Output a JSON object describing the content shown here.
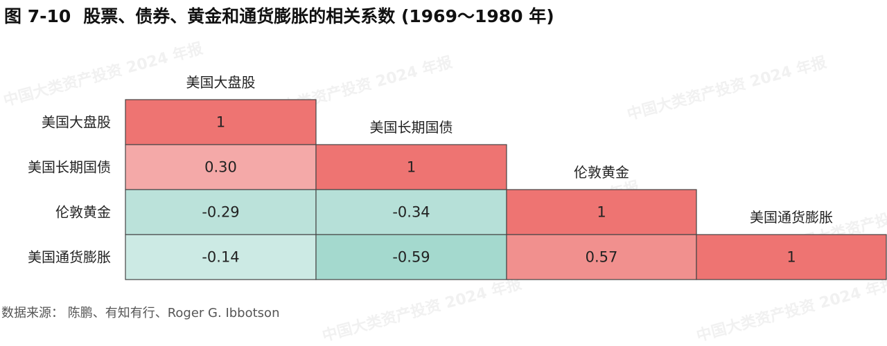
{
  "figure": {
    "number": "图 7-10",
    "title": "股票、债券、黄金和通货膨胀的相关系数 (1969～1980 年)"
  },
  "source": "数据来源： 陈鹏、有知有行、Roger G. Ibbotson",
  "watermark": "中国大类资产投资 2024 年报",
  "chart_data": {
    "type": "heatmap",
    "title": "股票、债券、黄金和通货膨胀的相关系数 (1969～1980 年)",
    "row_labels": [
      "美国大盘股",
      "美国长期国债",
      "伦敦黄金",
      "美国通货膨胀"
    ],
    "col_labels": [
      "美国大盘股",
      "美国长期国债",
      "伦敦黄金",
      "美国通货膨胀"
    ],
    "matrix": [
      [
        1,
        null,
        null,
        null
      ],
      [
        0.3,
        1,
        null,
        null
      ],
      [
        -0.29,
        -0.34,
        1,
        null
      ],
      [
        -0.14,
        -0.59,
        0.57,
        1
      ]
    ],
    "value_labels": [
      [
        "1",
        "",
        "",
        ""
      ],
      [
        "0.30",
        "1",
        "",
        ""
      ],
      [
        "-0.29",
        "-0.34",
        "1",
        ""
      ],
      [
        "-0.14",
        "-0.59",
        "0.57",
        "1"
      ]
    ],
    "colors": {
      "positive": "#ee7472",
      "negative": "#8fd0c3",
      "border": "#444444"
    }
  }
}
